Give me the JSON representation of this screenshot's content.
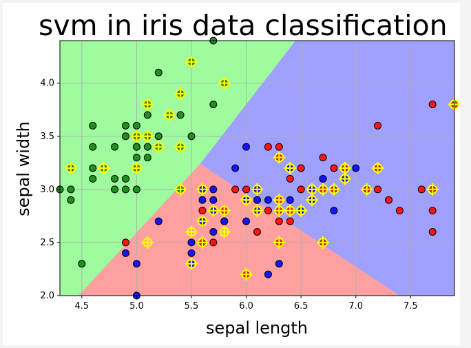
{
  "chart_data": {
    "type": "scatter",
    "title": "svm in iris data classification",
    "xlabel": "sepal length",
    "ylabel": "sepal width",
    "xlim": [
      4.3,
      7.9
    ],
    "ylim": [
      2.0,
      4.4
    ],
    "xticks": [
      "4.5",
      "5.0",
      "5.5",
      "6.0",
      "6.5",
      "7.0",
      "7.5"
    ],
    "yticks": [
      "2.0",
      "2.5",
      "3.0",
      "3.5",
      "4.0"
    ],
    "grid": true,
    "regions": [
      {
        "class": "green",
        "color": "#9efc9e"
      },
      {
        "class": "red",
        "color": "#ffa0a0"
      },
      {
        "class": "blue",
        "color": "#a0a0ff"
      }
    ],
    "marker_colors": {
      "green": "#1f8f1f",
      "red": "#ff1414",
      "blue": "#1414ff",
      "support_vector": "#ffff00"
    },
    "series": [
      {
        "class": "green",
        "points": [
          [
            5.8,
            4.0
          ],
          [
            5.7,
            4.4
          ],
          [
            5.4,
            3.9
          ],
          [
            5.1,
            3.8
          ],
          [
            5.5,
            4.2
          ],
          [
            5.2,
            4.1
          ],
          [
            5.3,
            3.7
          ],
          [
            5.4,
            3.7
          ],
          [
            5.1,
            3.8
          ],
          [
            5.7,
            3.8
          ],
          [
            4.6,
            3.6
          ],
          [
            5.0,
            3.6
          ],
          [
            4.9,
            3.6
          ],
          [
            5.1,
            3.7
          ],
          [
            5.0,
            3.5
          ],
          [
            5.1,
            3.5
          ],
          [
            5.2,
            3.5
          ],
          [
            5.5,
            3.5
          ],
          [
            4.9,
            3.5
          ],
          [
            5.0,
            3.4
          ],
          [
            5.1,
            3.4
          ],
          [
            5.4,
            3.4
          ],
          [
            5.2,
            3.4
          ],
          [
            4.8,
            3.4
          ],
          [
            4.6,
            3.4
          ],
          [
            4.7,
            3.2
          ],
          [
            4.4,
            3.2
          ],
          [
            4.6,
            3.2
          ],
          [
            5.0,
            3.2
          ],
          [
            5.0,
            3.3
          ],
          [
            5.1,
            3.3
          ],
          [
            4.6,
            3.1
          ],
          [
            4.8,
            3.1
          ],
          [
            4.9,
            3.1
          ],
          [
            4.3,
            3.0
          ],
          [
            4.4,
            3.0
          ],
          [
            4.8,
            3.0
          ],
          [
            4.9,
            3.0
          ],
          [
            5.0,
            3.0
          ],
          [
            5.4,
            3.0
          ],
          [
            4.4,
            2.9
          ],
          [
            4.5,
            2.3
          ],
          [
            5.0,
            3.4
          ]
        ]
      },
      {
        "class": "red",
        "points": [
          [
            7.7,
            3.8
          ],
          [
            7.2,
            3.6
          ],
          [
            7.9,
            3.8
          ],
          [
            6.2,
            3.4
          ],
          [
            6.3,
            3.4
          ],
          [
            7.2,
            3.2
          ],
          [
            6.8,
            3.2
          ],
          [
            6.9,
            3.2
          ],
          [
            6.7,
            3.3
          ],
          [
            6.4,
            3.2
          ],
          [
            6.5,
            3.2
          ],
          [
            6.3,
            3.3
          ],
          [
            6.4,
            3.1
          ],
          [
            6.9,
            3.1
          ],
          [
            6.7,
            3.1
          ],
          [
            7.1,
            3.0
          ],
          [
            7.2,
            3.0
          ],
          [
            6.5,
            3.0
          ],
          [
            6.7,
            3.0
          ],
          [
            6.8,
            3.0
          ],
          [
            7.6,
            3.0
          ],
          [
            7.7,
            3.0
          ],
          [
            5.9,
            3.0
          ],
          [
            6.0,
            3.0
          ],
          [
            6.1,
            3.0
          ],
          [
            7.3,
            2.9
          ],
          [
            6.3,
            2.9
          ],
          [
            7.4,
            2.8
          ],
          [
            7.7,
            2.8
          ],
          [
            6.2,
            2.8
          ],
          [
            6.4,
            2.8
          ],
          [
            6.3,
            2.8
          ],
          [
            6.3,
            2.7
          ],
          [
            6.4,
            2.7
          ],
          [
            5.8,
            2.7
          ],
          [
            5.6,
            2.8
          ],
          [
            5.8,
            2.8
          ],
          [
            5.7,
            2.5
          ],
          [
            5.6,
            2.5
          ],
          [
            6.1,
            2.6
          ],
          [
            7.7,
            2.6
          ],
          [
            6.7,
            2.5
          ],
          [
            6.3,
            2.5
          ],
          [
            6.0,
            2.2
          ],
          [
            4.9,
            2.5
          ],
          [
            5.8,
            2.8
          ]
        ]
      },
      {
        "class": "blue",
        "points": [
          [
            6.0,
            3.4
          ],
          [
            5.9,
            3.2
          ],
          [
            7.0,
            3.2
          ],
          [
            6.4,
            3.2
          ],
          [
            6.9,
            3.1
          ],
          [
            6.7,
            3.1
          ],
          [
            6.6,
            3.0
          ],
          [
            5.6,
            3.0
          ],
          [
            5.7,
            3.0
          ],
          [
            6.1,
            3.0
          ],
          [
            5.6,
            2.9
          ],
          [
            5.7,
            2.9
          ],
          [
            6.2,
            2.9
          ],
          [
            6.1,
            2.9
          ],
          [
            6.4,
            2.9
          ],
          [
            6.6,
            2.9
          ],
          [
            6.0,
            2.9
          ],
          [
            6.8,
            2.8
          ],
          [
            6.1,
            2.8
          ],
          [
            6.5,
            2.8
          ],
          [
            5.7,
            2.8
          ],
          [
            6.3,
            2.3
          ],
          [
            5.5,
            2.5
          ],
          [
            5.5,
            2.4
          ],
          [
            5.5,
            2.3
          ],
          [
            4.9,
            2.4
          ],
          [
            5.0,
            2.3
          ],
          [
            5.2,
            2.7
          ],
          [
            5.6,
            2.7
          ],
          [
            5.8,
            2.7
          ],
          [
            5.7,
            2.6
          ],
          [
            6.0,
            2.7
          ],
          [
            5.0,
            2.0
          ],
          [
            6.2,
            2.2
          ]
        ]
      }
    ],
    "support_vectors": [
      [
        5.8,
        4.0
      ],
      [
        5.5,
        4.2
      ],
      [
        5.4,
        3.9
      ],
      [
        5.1,
        3.8
      ],
      [
        5.3,
        3.7
      ],
      [
        5.0,
        3.5
      ],
      [
        5.1,
        3.5
      ],
      [
        5.2,
        3.4
      ],
      [
        5.4,
        3.4
      ],
      [
        4.4,
        3.2
      ],
      [
        4.7,
        3.2
      ],
      [
        5.0,
        3.2
      ],
      [
        5.4,
        3.0
      ],
      [
        5.6,
        3.0
      ],
      [
        6.0,
        2.9
      ],
      [
        6.1,
        3.0
      ],
      [
        6.3,
        3.3
      ],
      [
        6.4,
        3.2
      ],
      [
        6.9,
        3.2
      ],
      [
        7.2,
        3.2
      ],
      [
        6.9,
        3.1
      ],
      [
        6.8,
        3.0
      ],
      [
        6.6,
        3.0
      ],
      [
        6.7,
        3.0
      ],
      [
        7.1,
        3.0
      ],
      [
        7.7,
        3.0
      ],
      [
        7.9,
        3.8
      ],
      [
        6.6,
        2.9
      ],
      [
        6.3,
        2.9
      ],
      [
        6.3,
        2.8
      ],
      [
        6.4,
        2.8
      ],
      [
        6.5,
        2.8
      ],
      [
        6.1,
        2.8
      ],
      [
        5.6,
        2.7
      ],
      [
        5.7,
        2.8
      ],
      [
        5.8,
        2.8
      ],
      [
        5.8,
        2.6
      ],
      [
        5.5,
        2.6
      ],
      [
        5.5,
        2.3
      ],
      [
        5.1,
        2.5
      ],
      [
        5.6,
        2.5
      ],
      [
        6.3,
        2.5
      ],
      [
        6.0,
        2.2
      ],
      [
        6.7,
        2.5
      ]
    ]
  }
}
